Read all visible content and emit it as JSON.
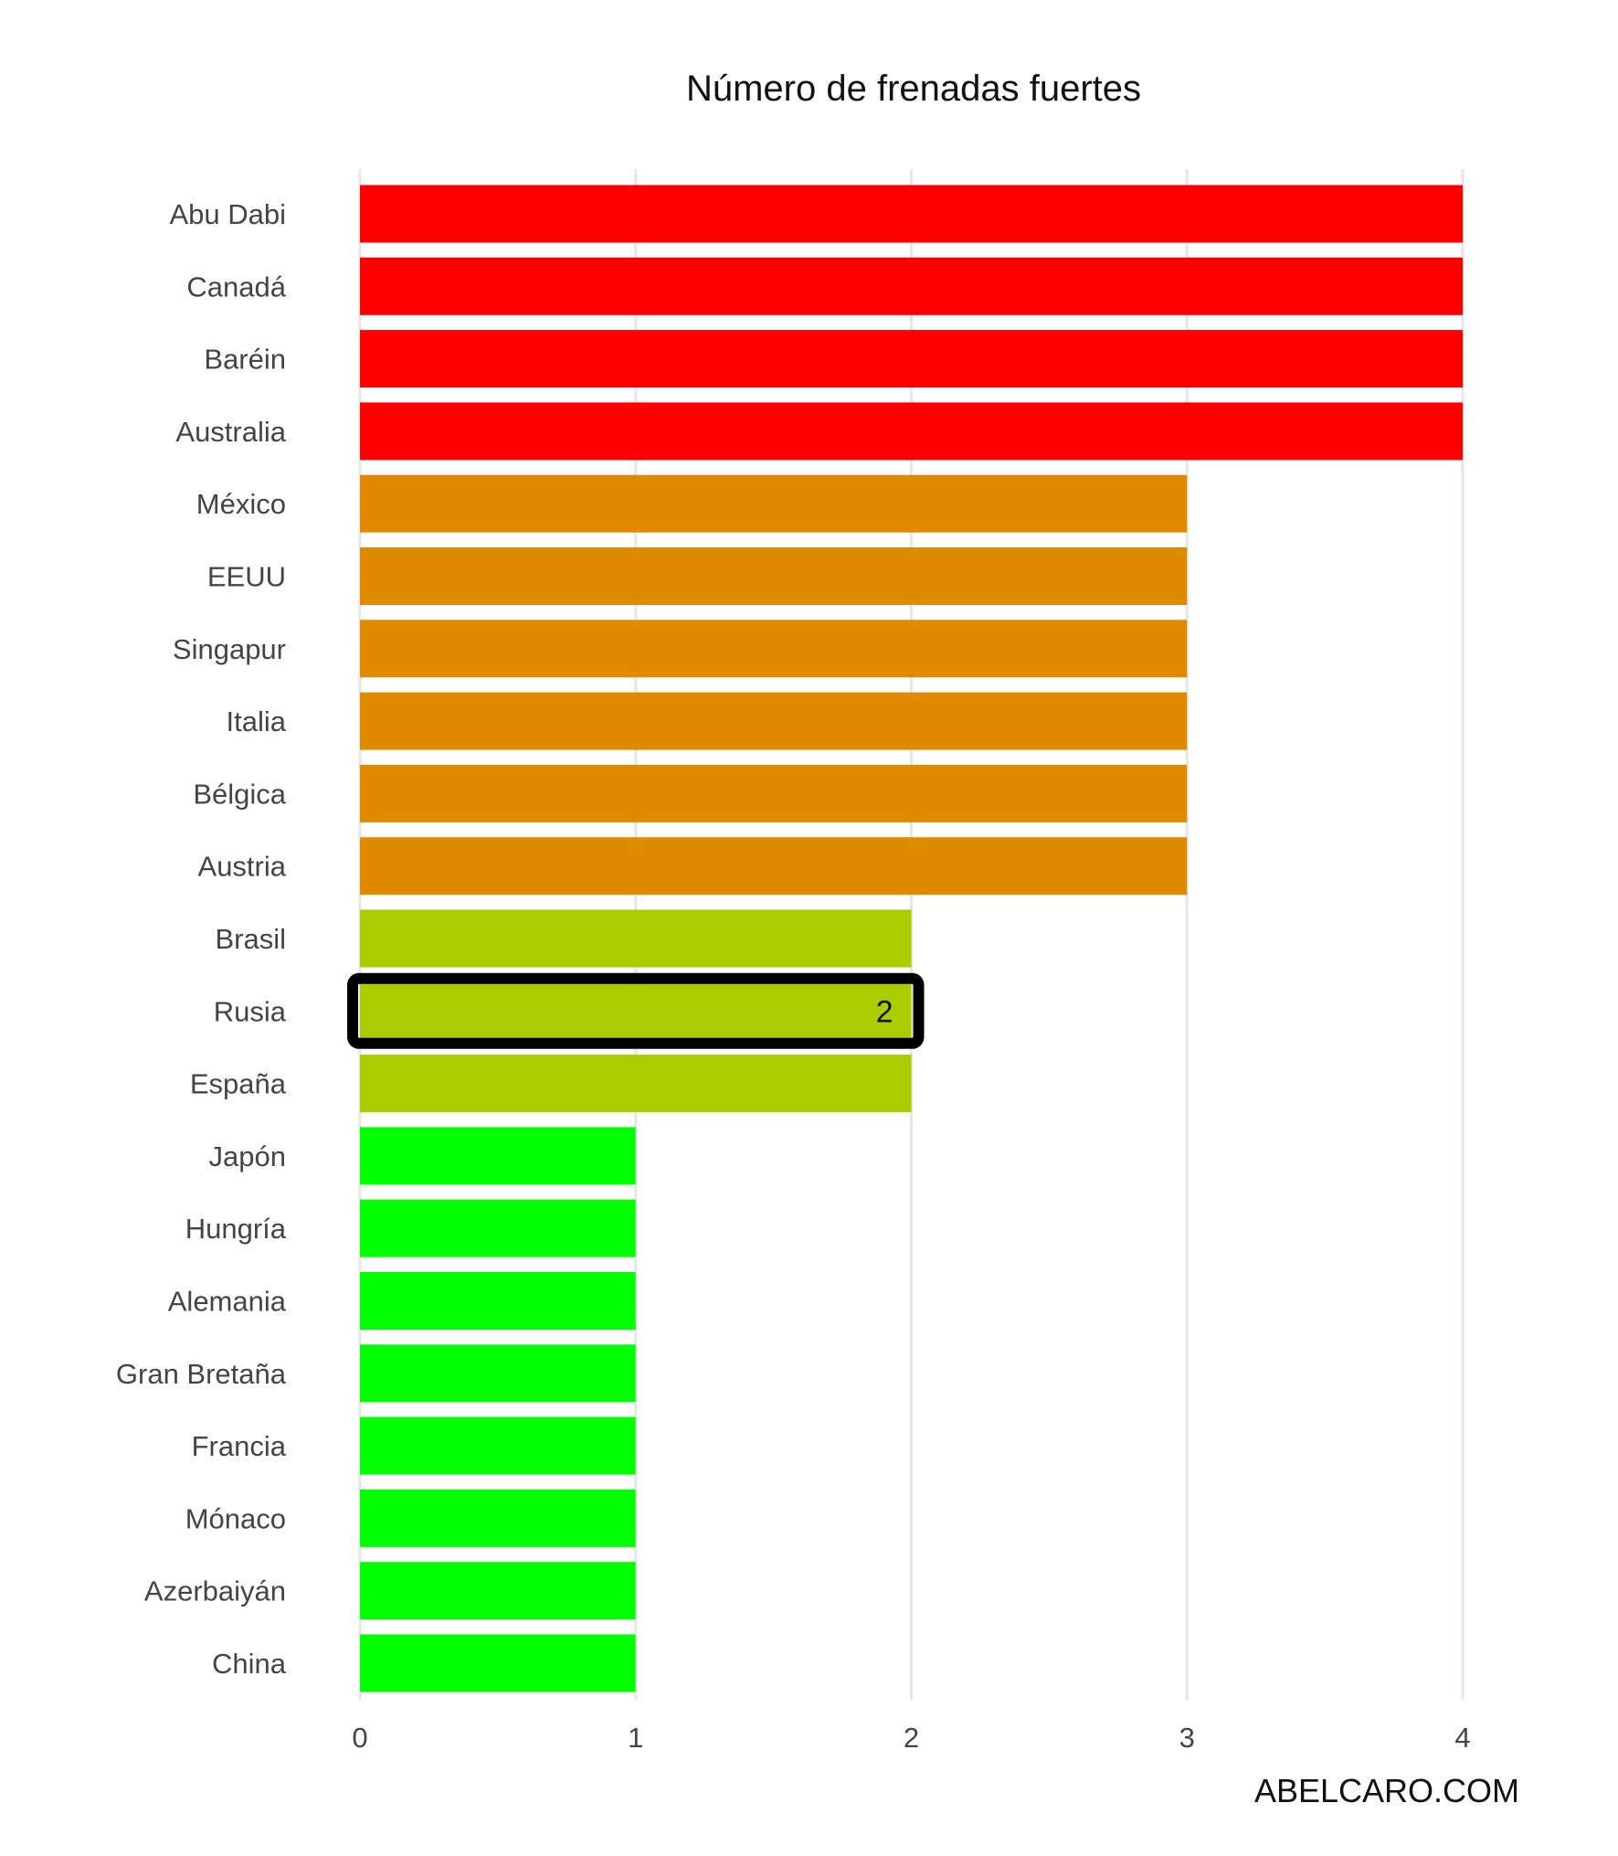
{
  "chart_data": {
    "type": "bar",
    "orientation": "horizontal",
    "title": "Número de frenadas fuertes",
    "xlabel": "",
    "ylabel": "",
    "xlim": [
      0,
      4
    ],
    "x_ticks": [
      0,
      1,
      2,
      3,
      4
    ],
    "grid": "vertical",
    "categories": [
      "Abu Dabi",
      "Canadá",
      "Baréin",
      "Australia",
      "México",
      "EEUU",
      "Singapur",
      "Italia",
      "Bélgica",
      "Austria",
      "Brasil",
      "Rusia",
      "España",
      "Japón",
      "Hungría",
      "Alemania",
      "Gran Bretaña",
      "Francia",
      "Mónaco",
      "Azerbaiyán",
      "China"
    ],
    "values": [
      4,
      4,
      4,
      4,
      3,
      3,
      3,
      3,
      3,
      3,
      2,
      2,
      2,
      1,
      1,
      1,
      1,
      1,
      1,
      1,
      1
    ],
    "colors": {
      "4": "#ff0000",
      "3": "#e08a00",
      "2": "#aacc00",
      "1": "#00ff00"
    },
    "highlight": {
      "category": "Rusia",
      "label": "2",
      "outline_color": "#000000"
    },
    "caption": "ABELCARO.COM"
  }
}
